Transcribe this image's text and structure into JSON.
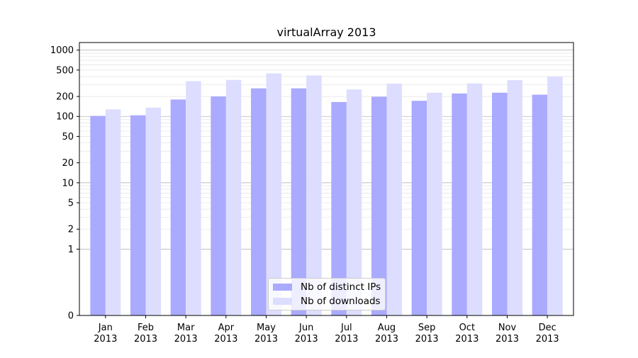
{
  "chart_data": {
    "type": "bar",
    "title": "virtualArray 2013",
    "xlabel": "",
    "ylabel": "",
    "yscale": "symlog",
    "ylim": [
      0,
      1300
    ],
    "yticks": [
      0,
      1,
      2,
      5,
      10,
      20,
      50,
      100,
      200,
      500,
      1000
    ],
    "ytick_labels": [
      "0",
      "1",
      "2",
      "5",
      "10",
      "20",
      "50",
      "100",
      "200",
      "500",
      "1000"
    ],
    "categories": [
      {
        "month": "Jan",
        "year": "2013"
      },
      {
        "month": "Feb",
        "year": "2013"
      },
      {
        "month": "Mar",
        "year": "2013"
      },
      {
        "month": "Apr",
        "year": "2013"
      },
      {
        "month": "May",
        "year": "2013"
      },
      {
        "month": "Jun",
        "year": "2013"
      },
      {
        "month": "Jul",
        "year": "2013"
      },
      {
        "month": "Aug",
        "year": "2013"
      },
      {
        "month": "Sep",
        "year": "2013"
      },
      {
        "month": "Oct",
        "year": "2013"
      },
      {
        "month": "Nov",
        "year": "2013"
      },
      {
        "month": "Dec",
        "year": "2013"
      }
    ],
    "series": [
      {
        "name": "Nb of distinct IPs",
        "color": "#aaaaff",
        "values": [
          102,
          104,
          180,
          200,
          265,
          265,
          165,
          198,
          172,
          222,
          228,
          213
        ]
      },
      {
        "name": "Nb of downloads",
        "color": "#ddddff",
        "values": [
          128,
          136,
          340,
          355,
          445,
          415,
          255,
          312,
          228,
          315,
          353,
          400
        ]
      }
    ],
    "grid": true,
    "legend": "lower-center"
  }
}
